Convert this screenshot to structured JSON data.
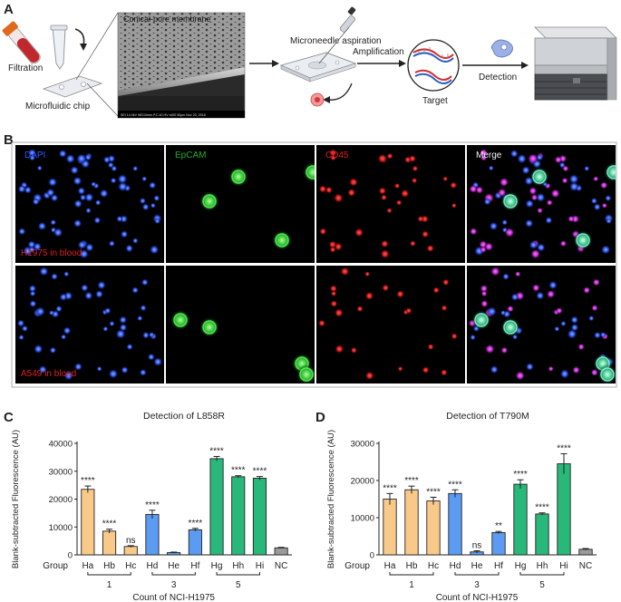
{
  "panel_letters": {
    "a": "A",
    "b": "B",
    "c": "C",
    "d": "D"
  },
  "panel_a": {
    "filtration_label": "Filtration",
    "chip_label": "Microfluidic chip",
    "membrane_label": "Conical-pore membrane",
    "sem_caption": "SEI  14.0kV  WD10mm  P.C.40  HV   x400   50μm   Nov 20, 2018",
    "aspiration_label": "Microneedle aspiration",
    "amplification_label": "Amplification",
    "target_label": "Target",
    "detection_label": "Detection"
  },
  "panel_b": {
    "channels": [
      "DAPI",
      "EpCAM",
      "CD45",
      "Merge"
    ],
    "channel_colors": [
      "#2e5bff",
      "#22b022",
      "#e02020",
      "#111111"
    ],
    "rows": [
      {
        "label": "H1975 in blood"
      },
      {
        "label": "A549 in blood"
      }
    ],
    "row_label_color": "#e02020"
  },
  "colors": {
    "orange": "#f9c98a",
    "blue": "#5b9bf2",
    "green": "#28b87a",
    "gray": "#9a9a9a"
  },
  "chart_data": [
    {
      "type": "bar",
      "title": "Detection of L858R",
      "ylabel": "Blank-subtracted Fluorescence (AU)",
      "xlabel": "Count of NCI-H1975",
      "group_axis_label": "Group",
      "categories": [
        "Ha",
        "Hb",
        "Hc",
        "Hd",
        "He",
        "Hf",
        "Hg",
        "Hh",
        "Hi",
        "NC"
      ],
      "values": [
        23500,
        8500,
        3000,
        14500,
        800,
        9000,
        34500,
        28000,
        27500,
        2500
      ],
      "errors": [
        1200,
        700,
        300,
        1500,
        200,
        500,
        800,
        400,
        600,
        200
      ],
      "significance": [
        "****",
        "****",
        "ns",
        "****",
        "",
        "****",
        "****",
        "****",
        "****",
        ""
      ],
      "bar_colors": [
        "orange",
        "orange",
        "orange",
        "blue",
        "blue",
        "blue",
        "green",
        "green",
        "green",
        "gray"
      ],
      "group_labels": [
        "1",
        "3",
        "5"
      ],
      "yticks": [
        0,
        10000,
        20000,
        30000,
        40000
      ],
      "ylim": [
        0,
        40000
      ]
    },
    {
      "type": "bar",
      "title": "Detection of T790M",
      "ylabel": "Blank-subtracted Fluorescence (AU)",
      "xlabel": "Count of NCI-H1975",
      "group_axis_label": "Group",
      "categories": [
        "Ha",
        "Hb",
        "Hc",
        "Hd",
        "He",
        "Hf",
        "Hg",
        "Hh",
        "Hi",
        "NC"
      ],
      "values": [
        15000,
        17500,
        14500,
        16500,
        800,
        6000,
        19000,
        11000,
        24500,
        1500
      ],
      "errors": [
        1500,
        1000,
        1000,
        1000,
        300,
        300,
        1200,
        300,
        2700,
        200
      ],
      "significance": [
        "****",
        "****",
        "****",
        "****",
        "ns",
        "**",
        "****",
        "****",
        "****",
        ""
      ],
      "bar_colors": [
        "orange",
        "orange",
        "orange",
        "blue",
        "blue",
        "blue",
        "green",
        "green",
        "green",
        "gray"
      ],
      "group_labels": [
        "1",
        "3",
        "5"
      ],
      "yticks": [
        0,
        10000,
        20000,
        30000
      ],
      "ylim": [
        0,
        30000
      ]
    }
  ]
}
